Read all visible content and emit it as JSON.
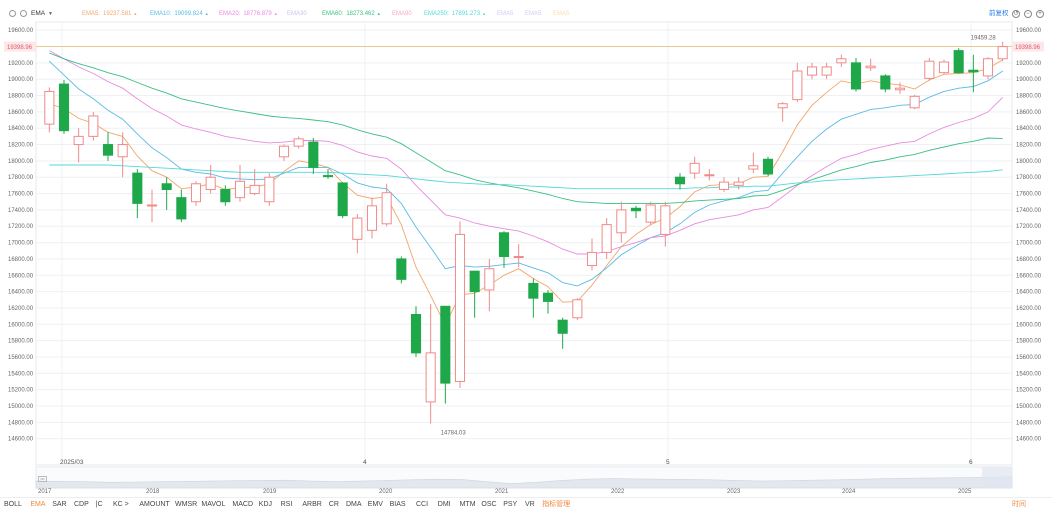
{
  "indicator": {
    "name": "EMA",
    "caret": "▼"
  },
  "legend": [
    {
      "label": "EMA5:",
      "value": "19237.581",
      "color": "#f0a66a",
      "arrow": "▲"
    },
    {
      "label": "EMA10:",
      "value": "19099.824",
      "color": "#5bbbe6",
      "arrow": "▲"
    },
    {
      "label": "EMA20:",
      "value": "18776.879",
      "color": "#e88be0",
      "arrow": "▲"
    },
    {
      "label": "EMA30",
      "value": "",
      "color": "#c9c3f0",
      "arrow": ""
    },
    {
      "label": "EMA60:",
      "value": "18273.462",
      "color": "#3bbf83",
      "arrow": "▲"
    },
    {
      "label": "EMA90",
      "value": "",
      "color": "#f7a8c8",
      "arrow": ""
    },
    {
      "label": "EMA250:",
      "value": "17891.273",
      "color": "#54d8d8",
      "arrow": "▲"
    },
    {
      "label": "EMA5",
      "value": "",
      "color": "#cfcdf5",
      "arrow": ""
    },
    {
      "label": "EMA5",
      "value": "",
      "color": "#d8c8f2",
      "arrow": ""
    },
    {
      "label": "EMA5",
      "value": "",
      "color": "#f2e3a4",
      "arrow": ""
    }
  ],
  "restore_label": "前复权",
  "controls": [
    "↺",
    "−",
    "+"
  ],
  "colors": {
    "up": "#f08a8a",
    "down": "#1ea84a",
    "grid": "#eef0f3",
    "hline": "#e8b96a",
    "hline_label_bg": "#fce8e8",
    "hline_label_color": "#e05a6a"
  },
  "yaxis": {
    "ticks": [
      "19600.00",
      "19400.00",
      "19200.00",
      "19000.00",
      "18800.00",
      "18600.00",
      "18400.00",
      "18200.00",
      "18000.00",
      "17800.00",
      "17600.00",
      "17400.00",
      "17200.00",
      "17000.00",
      "16800.00",
      "16600.00",
      "16400.00",
      "16200.00",
      "16000.00",
      "15800.00",
      "15600.00",
      "15400.00",
      "15200.00",
      "15000.00",
      "14800.00",
      "14600.00"
    ]
  },
  "price_line": {
    "label": "19398.96",
    "value": 19398.96
  },
  "annotations": {
    "high": "19459.28",
    "low": "14784.03"
  },
  "xaxis": {
    "month_labels": [
      "2025/03",
      "4",
      "5",
      "6"
    ]
  },
  "nav_years": [
    "2017",
    "2018",
    "2019",
    "2020",
    "2021",
    "2022",
    "2023",
    "2024",
    "2025"
  ],
  "scroll_handle_label": "•••",
  "tabs": [
    "BOLL",
    "EMA",
    "SAR",
    "CDP",
    "|C",
    "KC >",
    "AMOUNT",
    "WMSR",
    "MAVOL",
    "MACD",
    "KDJ",
    "RSI",
    "ARBR",
    "CR",
    "DMA",
    "EMV",
    "BIAS",
    "CCI",
    "DMI",
    "MTM",
    "OSC",
    "PSY",
    "VR",
    "指标管理"
  ],
  "tabs_right": "时间",
  "active_tab": "EMA",
  "chart_data": {
    "type": "candlestick",
    "ylim": [
      14400,
      19700
    ],
    "candles": [
      {
        "o": 18450,
        "c": 18850,
        "h": 18900,
        "l": 18350
      },
      {
        "o": 18940,
        "c": 18370,
        "h": 18990,
        "l": 18330
      },
      {
        "o": 18200,
        "c": 18300,
        "h": 18400,
        "l": 17980
      },
      {
        "o": 18300,
        "c": 18550,
        "h": 18600,
        "l": 18250
      },
      {
        "o": 18200,
        "c": 18070,
        "h": 18350,
        "l": 18000
      },
      {
        "o": 18050,
        "c": 18200,
        "h": 18350,
        "l": 17800
      },
      {
        "o": 17850,
        "c": 17480,
        "h": 17900,
        "l": 17300
      },
      {
        "o": 17450,
        "c": 17460,
        "h": 17650,
        "l": 17250
      },
      {
        "o": 17720,
        "c": 17650,
        "h": 17800,
        "l": 17400
      },
      {
        "o": 17550,
        "c": 17290,
        "h": 17650,
        "l": 17250
      },
      {
        "o": 17500,
        "c": 17720,
        "h": 17750,
        "l": 17450
      },
      {
        "o": 17650,
        "c": 17800,
        "h": 17950,
        "l": 17600
      },
      {
        "o": 17650,
        "c": 17500,
        "h": 17700,
        "l": 17450
      },
      {
        "o": 17550,
        "c": 17750,
        "h": 17950,
        "l": 17500
      },
      {
        "o": 17600,
        "c": 17700,
        "h": 17900,
        "l": 17580
      },
      {
        "o": 17500,
        "c": 17800,
        "h": 17850,
        "l": 17450
      },
      {
        "o": 18050,
        "c": 18180,
        "h": 18200,
        "l": 18000
      },
      {
        "o": 18180,
        "c": 18270,
        "h": 18300,
        "l": 18150
      },
      {
        "o": 18230,
        "c": 17920,
        "h": 18280,
        "l": 17840
      },
      {
        "o": 17820,
        "c": 17810,
        "h": 17900,
        "l": 17780
      },
      {
        "o": 17730,
        "c": 17330,
        "h": 17740,
        "l": 17300
      },
      {
        "o": 17040,
        "c": 17300,
        "h": 17350,
        "l": 16870
      },
      {
        "o": 17150,
        "c": 17450,
        "h": 17550,
        "l": 17050
      },
      {
        "o": 17230,
        "c": 17610,
        "h": 17720,
        "l": 17200
      },
      {
        "o": 16800,
        "c": 16550,
        "h": 16830,
        "l": 16500
      },
      {
        "o": 16120,
        "c": 15650,
        "h": 16220,
        "l": 15600
      },
      {
        "o": 15050,
        "c": 15650,
        "h": 16250,
        "l": 14784
      },
      {
        "o": 16220,
        "c": 15280,
        "h": 16220,
        "l": 15030
      },
      {
        "o": 15300,
        "c": 17100,
        "h": 17260,
        "l": 15220
      },
      {
        "o": 16650,
        "c": 16400,
        "h": 16650,
        "l": 16080
      },
      {
        "o": 16420,
        "c": 16680,
        "h": 16800,
        "l": 16160
      },
      {
        "o": 17120,
        "c": 16830,
        "h": 17140,
        "l": 16690
      },
      {
        "o": 16820,
        "c": 16830,
        "h": 16980,
        "l": 16700
      },
      {
        "o": 16500,
        "c": 16320,
        "h": 16560,
        "l": 16080
      },
      {
        "o": 16380,
        "c": 16280,
        "h": 16420,
        "l": 16130
      },
      {
        "o": 16050,
        "c": 15890,
        "h": 16080,
        "l": 15700
      },
      {
        "o": 16080,
        "c": 16300,
        "h": 16320,
        "l": 16050
      },
      {
        "o": 16720,
        "c": 16880,
        "h": 17050,
        "l": 16660
      },
      {
        "o": 16880,
        "c": 17220,
        "h": 17300,
        "l": 16800
      },
      {
        "o": 17120,
        "c": 17400,
        "h": 17500,
        "l": 17000
      },
      {
        "o": 17420,
        "c": 17390,
        "h": 17450,
        "l": 17300
      },
      {
        "o": 17250,
        "c": 17460,
        "h": 17500,
        "l": 17220
      },
      {
        "o": 17100,
        "c": 17450,
        "h": 17500,
        "l": 16950
      },
      {
        "o": 17800,
        "c": 17720,
        "h": 17850,
        "l": 17650
      },
      {
        "o": 17850,
        "c": 17970,
        "h": 18050,
        "l": 17780
      },
      {
        "o": 17830,
        "c": 17830,
        "h": 17900,
        "l": 17760
      },
      {
        "o": 17650,
        "c": 17740,
        "h": 17800,
        "l": 17620
      },
      {
        "o": 17700,
        "c": 17740,
        "h": 17800,
        "l": 17650
      },
      {
        "o": 17900,
        "c": 17940,
        "h": 18100,
        "l": 17850
      },
      {
        "o": 18020,
        "c": 17840,
        "h": 18050,
        "l": 17820
      },
      {
        "o": 18650,
        "c": 18700,
        "h": 18720,
        "l": 18480
      },
      {
        "o": 18750,
        "c": 19100,
        "h": 19200,
        "l": 18720
      },
      {
        "o": 19050,
        "c": 19150,
        "h": 19200,
        "l": 19000
      },
      {
        "o": 19050,
        "c": 19150,
        "h": 19200,
        "l": 19000
      },
      {
        "o": 19200,
        "c": 19250,
        "h": 19300,
        "l": 19150
      },
      {
        "o": 19200,
        "c": 18880,
        "h": 19260,
        "l": 18850
      },
      {
        "o": 19140,
        "c": 19160,
        "h": 19250,
        "l": 19100
      },
      {
        "o": 19040,
        "c": 18880,
        "h": 19060,
        "l": 18840
      },
      {
        "o": 18870,
        "c": 18890,
        "h": 18960,
        "l": 18820
      },
      {
        "o": 18650,
        "c": 18790,
        "h": 18810,
        "l": 18630
      },
      {
        "o": 19010,
        "c": 19220,
        "h": 19260,
        "l": 18980
      },
      {
        "o": 19080,
        "c": 19210,
        "h": 19240,
        "l": 19060
      },
      {
        "o": 19350,
        "c": 19080,
        "h": 19380,
        "l": 19070
      },
      {
        "o": 19110,
        "c": 19090,
        "h": 19300,
        "l": 18840
      },
      {
        "o": 19040,
        "c": 19250,
        "h": 19270,
        "l": 19000
      },
      {
        "o": 19250,
        "c": 19399,
        "h": 19459,
        "l": 19220
      }
    ],
    "ema_series": [
      {
        "name": "EMA5",
        "color": "#f0a66a",
        "values": [
          18700,
          18640,
          18520,
          18460,
          18350,
          18300,
          18060,
          17880,
          17800,
          17660,
          17680,
          17720,
          17650,
          17670,
          17680,
          17720,
          17870,
          18000,
          17970,
          17920,
          17730,
          17580,
          17540,
          17560,
          17220,
          16700,
          16350,
          15990,
          16360,
          16380,
          16480,
          16600,
          16680,
          16560,
          16460,
          16270,
          16280,
          16480,
          16720,
          16950,
          17100,
          17220,
          17300,
          17440,
          17620,
          17700,
          17710,
          17720,
          17800,
          17810,
          18110,
          18440,
          18680,
          18840,
          18980,
          18940,
          18980,
          18950,
          18930,
          18880,
          18990,
          19060,
          19070,
          19080,
          19130,
          19238
        ]
      },
      {
        "name": "EMA10",
        "color": "#5bbbe6",
        "values": [
          19220,
          19050,
          18880,
          18760,
          18620,
          18510,
          18330,
          18160,
          18040,
          17900,
          17860,
          17840,
          17790,
          17780,
          17770,
          17780,
          17850,
          17920,
          17920,
          17920,
          17840,
          17730,
          17680,
          17660,
          17480,
          17190,
          16940,
          16680,
          16720,
          16700,
          16710,
          16730,
          16750,
          16690,
          16630,
          16510,
          16470,
          16550,
          16690,
          16850,
          16960,
          17060,
          17120,
          17230,
          17370,
          17460,
          17510,
          17550,
          17620,
          17640,
          17850,
          18050,
          18240,
          18390,
          18510,
          18570,
          18630,
          18650,
          18680,
          18690,
          18780,
          18850,
          18890,
          18910,
          18980,
          19100
        ]
      },
      {
        "name": "EMA20",
        "color": "#e88be0",
        "values": [
          19350,
          19250,
          19150,
          19070,
          18970,
          18890,
          18760,
          18640,
          18550,
          18440,
          18390,
          18350,
          18300,
          18270,
          18240,
          18220,
          18230,
          18250,
          18250,
          18240,
          18190,
          18110,
          18060,
          18030,
          17900,
          17700,
          17520,
          17340,
          17300,
          17240,
          17200,
          17170,
          17140,
          17080,
          17010,
          16920,
          16860,
          16860,
          16890,
          16950,
          17000,
          17060,
          17080,
          17150,
          17230,
          17280,
          17310,
          17340,
          17400,
          17430,
          17560,
          17700,
          17820,
          17930,
          18030,
          18080,
          18140,
          18180,
          18220,
          18240,
          18330,
          18410,
          18470,
          18520,
          18600,
          18777
        ]
      },
      {
        "name": "EMA60",
        "color": "#3bbf83",
        "values": [
          19320,
          19250,
          19190,
          19140,
          19080,
          19030,
          18960,
          18890,
          18830,
          18760,
          18720,
          18680,
          18640,
          18610,
          18580,
          18550,
          18530,
          18520,
          18500,
          18480,
          18440,
          18380,
          18330,
          18290,
          18210,
          18100,
          17990,
          17880,
          17830,
          17770,
          17730,
          17700,
          17670,
          17630,
          17590,
          17540,
          17500,
          17490,
          17480,
          17480,
          17480,
          17480,
          17480,
          17490,
          17510,
          17520,
          17530,
          17540,
          17570,
          17580,
          17640,
          17710,
          17770,
          17830,
          17890,
          17930,
          17980,
          18010,
          18050,
          18080,
          18130,
          18170,
          18210,
          18240,
          18280,
          18273
        ]
      },
      {
        "name": "EMA250",
        "color": "#54d8d8",
        "values": [
          17950,
          17950,
          17950,
          17950,
          17950,
          17940,
          17930,
          17920,
          17910,
          17900,
          17890,
          17880,
          17870,
          17860,
          17860,
          17860,
          17860,
          17860,
          17860,
          17860,
          17850,
          17840,
          17830,
          17820,
          17800,
          17780,
          17760,
          17740,
          17730,
          17720,
          17710,
          17710,
          17700,
          17690,
          17680,
          17670,
          17660,
          17660,
          17660,
          17660,
          17660,
          17660,
          17660,
          17660,
          17670,
          17670,
          17680,
          17680,
          17690,
          17690,
          17710,
          17730,
          17740,
          17760,
          17770,
          17780,
          17790,
          17800,
          17810,
          17820,
          17830,
          17840,
          17850,
          17860,
          17870,
          17891
        ]
      }
    ],
    "nav_area": [
      0.55,
      0.52,
      0.5,
      0.45,
      0.48,
      0.5,
      0.52,
      0.55,
      0.58,
      0.6,
      0.62,
      0.55,
      0.5,
      0.55,
      0.6,
      0.65,
      0.7,
      0.68,
      0.5,
      0.35,
      0.45,
      0.6,
      0.7,
      0.75,
      0.72,
      0.7,
      0.68,
      0.65,
      0.6,
      0.55,
      0.58,
      0.62,
      0.65,
      0.7,
      0.75,
      0.78,
      0.8,
      0.82,
      0.85,
      0.9
    ]
  }
}
